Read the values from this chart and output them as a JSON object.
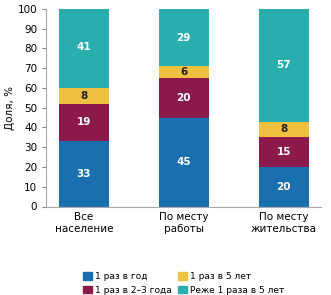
{
  "categories": [
    "Все\nнаселение",
    "По месту\nработы",
    "По месту\nжительства"
  ],
  "series": {
    "1 раз в год": [
      33,
      45,
      20
    ],
    "1 раз в 2–3 года": [
      19,
      20,
      15
    ],
    "1 раз в 5 лет": [
      8,
      6,
      8
    ],
    "Реже 1 раза в 5 лет": [
      41,
      29,
      57
    ]
  },
  "colors": {
    "1 раз в год": "#1a6faf",
    "1 раз в 2–3 года": "#8b1a4a",
    "1 раз в 5 лет": "#f0c040",
    "Реже 1 раза в 5 лет": "#2aadad"
  },
  "ylabel": "Доля, %",
  "ylim": [
    0,
    100
  ],
  "yticks": [
    0,
    10,
    20,
    30,
    40,
    50,
    60,
    70,
    80,
    90,
    100
  ],
  "legend_order": [
    "1 раз в год",
    "1 раз в 2–3 года",
    "1 раз в 5 лет",
    "Реже 1 раза в 5 лет"
  ],
  "stack_order": [
    "1 раз в год",
    "1 раз в 2–3 года",
    "1 раз в 5 лет",
    "Реже 1 раза в 5 лет"
  ],
  "bar_width": 0.5,
  "figsize": [
    3.31,
    2.95
  ],
  "dpi": 100
}
